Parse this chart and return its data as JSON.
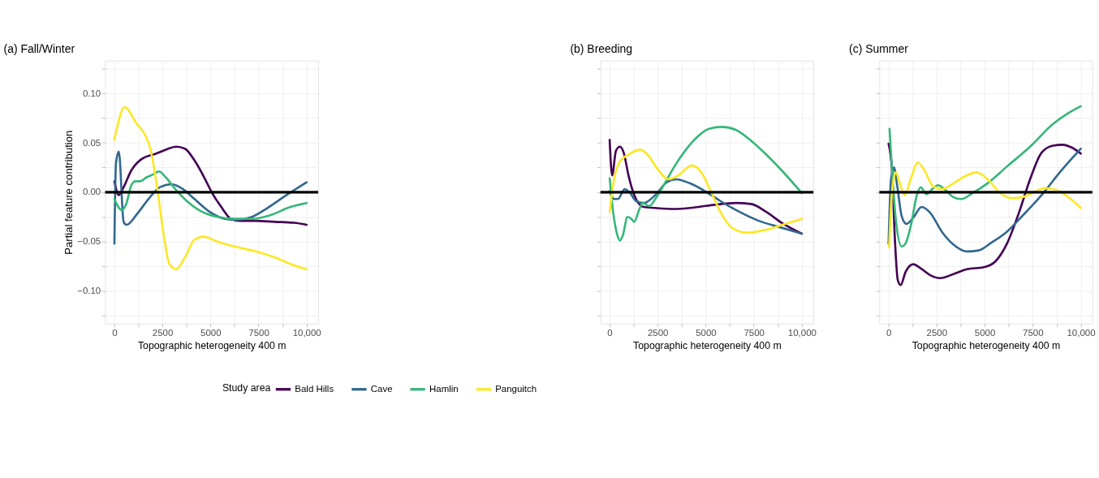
{
  "chart_data": [
    {
      "type": "line",
      "title": "(a) Fall/Winter",
      "xlabel": "Topographic heterogeneity 400 m",
      "ylabel": "Partial feature contribution",
      "legend_title": "Study area",
      "legend": "bottom",
      "grid": true,
      "line_style": "solid",
      "marker": "none",
      "xlim": [
        -480,
        10600
      ],
      "ylim": [
        -0.133,
        0.133
      ],
      "xticks": [
        0,
        {
          "value": 1250,
          "label": null
        },
        2500,
        {
          "value": 3750,
          "label": null
        },
        5000,
        {
          "value": 6250,
          "label": null
        },
        7500,
        {
          "value": 8750,
          "label": null
        },
        {
          "value": 10000,
          "label": "10,000"
        }
      ],
      "yticks": [
        {
          "value": -0.125,
          "label": null
        },
        {
          "value": -0.1,
          "label": "−0.10"
        },
        {
          "value": -0.075,
          "label": null
        },
        {
          "value": -0.05,
          "label": "−0.05"
        },
        {
          "value": -0.025,
          "label": null
        },
        {
          "value": 0,
          "label": "0.00"
        },
        {
          "value": 0.025,
          "label": null
        },
        {
          "value": 0.05,
          "label": "0.05"
        },
        {
          "value": 0.075,
          "label": null
        },
        {
          "value": 0.1,
          "label": "0.10"
        },
        {
          "value": 0.125,
          "label": null
        }
      ],
      "ref_lines": [
        {
          "axis": "y",
          "value": 0,
          "color": "#000000"
        }
      ],
      "series": [
        {
          "name": "Bald Hills",
          "color": "#440154",
          "x": [
            0,
            230,
            480,
            880,
            1380,
            2170,
            2670,
            3220,
            3670,
            4170,
            4670,
            5060,
            5560,
            6060,
            6560,
            7360,
            8350,
            9350,
            10000
          ],
          "values": [
            0.011,
            -0.003,
            0.005,
            0.022,
            0.033,
            0.039,
            0.043,
            0.046,
            0.044,
            0.032,
            0.015,
            0.0,
            -0.015,
            -0.027,
            -0.029,
            -0.029,
            -0.03,
            -0.031,
            -0.033
          ]
        },
        {
          "name": "Cave",
          "color": "#31688e",
          "x": [
            0,
            80,
            230,
            480,
            630,
            1180,
            1770,
            2370,
            2970,
            3570,
            4170,
            4960,
            5760,
            6360,
            7160,
            7960,
            8950,
            10000
          ],
          "values": [
            -0.052,
            0.029,
            0.041,
            -0.03,
            -0.033,
            -0.022,
            -0.007,
            0.005,
            0.008,
            0.003,
            -0.007,
            -0.02,
            -0.027,
            -0.028,
            -0.025,
            -0.016,
            -0.003,
            0.01
          ]
        },
        {
          "name": "Hamlin",
          "color": "#35b779",
          "x": [
            0,
            380,
            630,
            880,
            1080,
            1330,
            1670,
            2020,
            2320,
            2670,
            3170,
            3770,
            4570,
            5360,
            6260,
            7160,
            8150,
            9150,
            10000
          ],
          "values": [
            -0.007,
            -0.018,
            -0.011,
            0.007,
            0.011,
            0.011,
            0.015,
            0.018,
            0.021,
            0.015,
            0.003,
            -0.009,
            -0.02,
            -0.025,
            -0.027,
            -0.027,
            -0.023,
            -0.015,
            -0.011
          ]
        },
        {
          "name": "Panguitch",
          "color": "#fde725",
          "x": [
            0,
            530,
            1170,
            1620,
            1870,
            2220,
            2570,
            2870,
            3220,
            3670,
            4170,
            4620,
            5360,
            6260,
            7360,
            8350,
            9350,
            10000
          ],
          "values": [
            0.053,
            0.086,
            0.069,
            0.057,
            0.044,
            0.005,
            -0.044,
            -0.073,
            -0.078,
            -0.066,
            -0.048,
            -0.045,
            -0.05,
            -0.055,
            -0.06,
            -0.066,
            -0.074,
            -0.078
          ]
        }
      ]
    },
    {
      "type": "line",
      "title": "(b) Breeding",
      "xlabel": "Topographic heterogeneity 400 m",
      "grid": true,
      "line_style": "solid",
      "marker": "none",
      "tick_labels": "x",
      "xlim": [
        -480,
        10600
      ],
      "ylim": [
        -0.133,
        0.133
      ],
      "xticks": [
        0,
        {
          "value": 1250,
          "label": null
        },
        2500,
        {
          "value": 3750,
          "label": null
        },
        5000,
        {
          "value": 6250,
          "label": null
        },
        7500,
        {
          "value": 8750,
          "label": null
        },
        {
          "value": 10000,
          "label": "10,000"
        }
      ],
      "yticks": [
        -0.125,
        -0.1,
        -0.075,
        -0.05,
        -0.025,
        0,
        0.025,
        0.05,
        0.075,
        0.1,
        0.125
      ],
      "ref_lines": [
        {
          "axis": "y",
          "value": 0,
          "color": "#000000"
        }
      ],
      "series": [
        {
          "color": "#440154",
          "x": [
            0,
            130,
            330,
            530,
            730,
            980,
            1280,
            1770,
            2370,
            3370,
            4170,
            5360,
            6560,
            7360,
            8150,
            8950,
            10000
          ],
          "values": [
            0.053,
            0.017,
            0.042,
            0.046,
            0.04,
            0.017,
            -0.003,
            -0.015,
            -0.016,
            -0.017,
            -0.016,
            -0.013,
            -0.011,
            -0.012,
            -0.02,
            -0.031,
            -0.042
          ]
        },
        {
          "color": "#31688e",
          "x": [
            0,
            230,
            430,
            780,
            1030,
            1380,
            1770,
            2370,
            2970,
            3470,
            4170,
            4960,
            5760,
            6760,
            7760,
            8950,
            10000
          ],
          "values": [
            0.001,
            -0.007,
            -0.007,
            0.003,
            0.0,
            -0.009,
            -0.011,
            -0.003,
            0.01,
            0.013,
            0.009,
            0.001,
            -0.009,
            -0.02,
            -0.029,
            -0.036,
            -0.042
          ]
        },
        {
          "color": "#35b779",
          "x": [
            0,
            180,
            380,
            530,
            680,
            930,
            1130,
            1280,
            1530,
            1720,
            2070,
            2370,
            2870,
            3370,
            3970,
            4570,
            5160,
            5860,
            6560,
            7360,
            8150,
            8950,
            10000
          ],
          "values": [
            0.014,
            -0.02,
            -0.042,
            -0.049,
            -0.044,
            -0.025,
            -0.027,
            -0.03,
            -0.018,
            -0.011,
            -0.014,
            -0.007,
            0.009,
            0.026,
            0.043,
            0.056,
            0.064,
            0.066,
            0.063,
            0.052,
            0.038,
            0.022,
            -0.001
          ]
        },
        {
          "color": "#fde725",
          "x": [
            0,
            230,
            530,
            980,
            1570,
            1970,
            2470,
            3070,
            3570,
            4270,
            4770,
            5260,
            5760,
            6360,
            7160,
            8150,
            9150,
            10000
          ],
          "values": [
            -0.02,
            0.013,
            0.031,
            0.038,
            0.043,
            0.038,
            0.024,
            0.013,
            0.017,
            0.027,
            0.02,
            0.001,
            -0.02,
            -0.036,
            -0.041,
            -0.038,
            -0.032,
            -0.027
          ]
        }
      ]
    },
    {
      "type": "line",
      "title": "(c) Summer",
      "xlabel": "Topographic heterogeneity 400 m",
      "grid": true,
      "line_style": "solid",
      "marker": "none",
      "tick_labels": "x",
      "xlim": [
        -480,
        10600
      ],
      "ylim": [
        -0.133,
        0.133
      ],
      "xticks": [
        0,
        {
          "value": 1250,
          "label": null
        },
        2500,
        {
          "value": 3750,
          "label": null
        },
        5000,
        {
          "value": 6250,
          "label": null
        },
        7500,
        {
          "value": 8750,
          "label": null
        },
        {
          "value": 10000,
          "label": "10,000"
        }
      ],
      "yticks": [
        -0.125,
        -0.1,
        -0.075,
        -0.05,
        -0.025,
        0,
        0.025,
        0.05,
        0.075,
        0.1,
        0.125
      ],
      "ref_lines": [
        {
          "axis": "y",
          "value": 0,
          "color": "#000000"
        }
      ],
      "series": [
        {
          "color": "#440154",
          "x": [
            0,
            180,
            330,
            480,
            630,
            880,
            1280,
            1670,
            2170,
            2670,
            3370,
            4070,
            4960,
            5560,
            6160,
            6760,
            7360,
            7960,
            8550,
            9050,
            9550,
            10000
          ],
          "values": [
            0.049,
            0.022,
            -0.048,
            -0.089,
            -0.094,
            -0.081,
            -0.073,
            -0.077,
            -0.084,
            -0.087,
            -0.083,
            -0.078,
            -0.076,
            -0.07,
            -0.052,
            -0.022,
            0.013,
            0.04,
            0.047,
            0.048,
            0.045,
            0.039
          ]
        },
        {
          "color": "#31688e",
          "x": [
            0,
            130,
            280,
            430,
            680,
            930,
            1280,
            1720,
            2170,
            2770,
            3370,
            4070,
            4670,
            5360,
            6160,
            6960,
            7960,
            8950,
            10000
          ],
          "values": [
            -0.052,
            0.013,
            0.025,
            0.009,
            -0.024,
            -0.032,
            -0.026,
            -0.015,
            -0.021,
            -0.04,
            -0.053,
            -0.06,
            -0.059,
            -0.051,
            -0.04,
            -0.024,
            -0.003,
            0.021,
            0.044
          ]
        },
        {
          "color": "#35b779",
          "x": [
            50,
            180,
            380,
            680,
            880,
            1180,
            1470,
            1670,
            1970,
            2270,
            2570,
            2970,
            3370,
            3770,
            4360,
            5150,
            6160,
            7360,
            8550,
            9350,
            10000
          ],
          "values": [
            0.064,
            0.022,
            -0.028,
            -0.055,
            -0.052,
            -0.032,
            -0.003,
            0.005,
            -0.002,
            0.003,
            0.007,
            0.002,
            -0.005,
            -0.007,
            -0.001,
            0.009,
            0.026,
            0.046,
            0.069,
            0.08,
            0.087
          ]
        },
        {
          "color": "#fde725",
          "x": [
            30,
            180,
            380,
            580,
            830,
            1180,
            1520,
            1870,
            2270,
            2770,
            3370,
            3970,
            4570,
            5160,
            5760,
            6360,
            6960,
            7560,
            8150,
            8750,
            9350,
            10000
          ],
          "values": [
            -0.056,
            0.001,
            0.02,
            0.009,
            -0.003,
            0.015,
            0.03,
            0.022,
            0.007,
            0.003,
            0.009,
            0.016,
            0.02,
            0.013,
            0.0,
            -0.006,
            -0.005,
            0.0,
            0.004,
            0.002,
            -0.005,
            -0.016
          ]
        }
      ]
    }
  ]
}
